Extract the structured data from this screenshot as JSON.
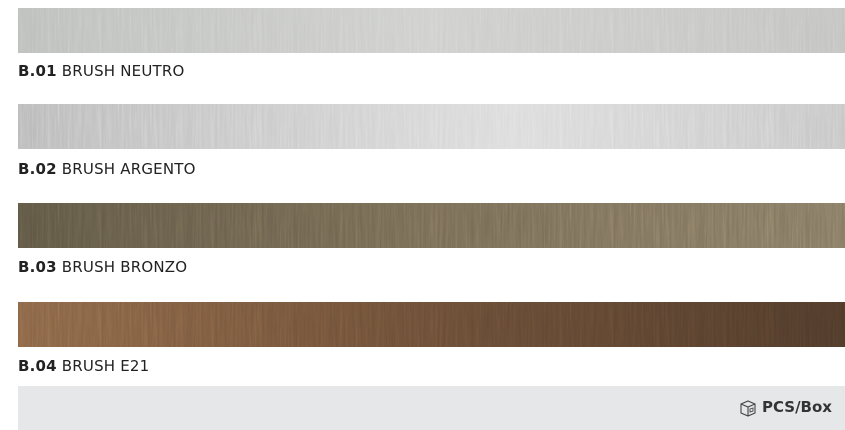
{
  "items": [
    {
      "code": "B.01",
      "name": "BRUSH NEUTRO"
    },
    {
      "code": "B.02",
      "name": "BRUSH ARGENTO"
    },
    {
      "code": "B.03",
      "name": "BRUSH BRONZO"
    },
    {
      "code": "B.04",
      "name": "BRUSH E21"
    }
  ],
  "footer": {
    "label": "PCS/Box"
  }
}
